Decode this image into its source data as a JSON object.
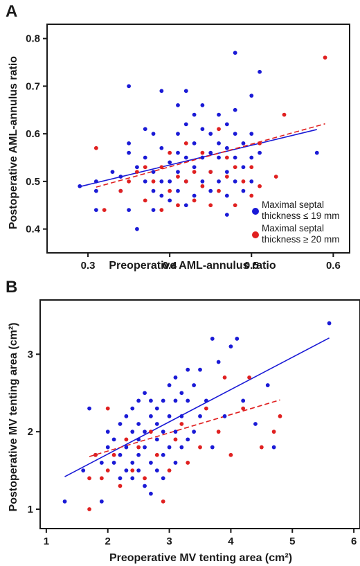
{
  "figure": {
    "background": "#ffffff",
    "axis_color": "#1a1a1a"
  },
  "colors": {
    "blue": "#1a1ad6",
    "red": "#e02020"
  },
  "chart_data": [
    {
      "panel": "A",
      "type": "scatter",
      "xlabel": "Preoperative AML-annulus ratio",
      "ylabel": "Postoperative AML-annulus ratio",
      "xlim": [
        0.25,
        0.62
      ],
      "ylim": [
        0.35,
        0.83
      ],
      "xticks": [
        0.3,
        0.4,
        0.5,
        0.6
      ],
      "xtick_labels": [
        "0.3",
        "0.4",
        "0.5",
        "0.6"
      ],
      "yticks": [
        0.4,
        0.5,
        0.6,
        0.7,
        0.8
      ],
      "ytick_labels": [
        "0.4",
        "0.5",
        "0.6",
        "0.7",
        "0.8"
      ],
      "grid": false,
      "legend": {
        "placement": "bottom-right"
      },
      "series": [
        {
          "name": "Maximal septal thickness ≤ 19 mm",
          "color": "#1a1ad6",
          "points": [
            [
              0.29,
              0.49
            ],
            [
              0.31,
              0.44
            ],
            [
              0.31,
              0.48
            ],
            [
              0.31,
              0.5
            ],
            [
              0.33,
              0.52
            ],
            [
              0.34,
              0.48
            ],
            [
              0.34,
              0.51
            ],
            [
              0.35,
              0.7
            ],
            [
              0.35,
              0.58
            ],
            [
              0.35,
              0.56
            ],
            [
              0.35,
              0.44
            ],
            [
              0.36,
              0.53
            ],
            [
              0.36,
              0.4
            ],
            [
              0.37,
              0.5
            ],
            [
              0.37,
              0.55
            ],
            [
              0.37,
              0.61
            ],
            [
              0.38,
              0.44
            ],
            [
              0.38,
              0.48
            ],
            [
              0.38,
              0.52
            ],
            [
              0.38,
              0.6
            ],
            [
              0.39,
              0.69
            ],
            [
              0.39,
              0.47
            ],
            [
              0.39,
              0.5
            ],
            [
              0.39,
              0.57
            ],
            [
              0.4,
              0.54
            ],
            [
              0.4,
              0.46
            ],
            [
              0.4,
              0.5
            ],
            [
              0.41,
              0.66
            ],
            [
              0.41,
              0.48
            ],
            [
              0.41,
              0.52
            ],
            [
              0.41,
              0.56
            ],
            [
              0.41,
              0.6
            ],
            [
              0.42,
              0.69
            ],
            [
              0.42,
              0.45
            ],
            [
              0.42,
              0.5
            ],
            [
              0.42,
              0.55
            ],
            [
              0.42,
              0.62
            ],
            [
              0.43,
              0.47
            ],
            [
              0.43,
              0.53
            ],
            [
              0.43,
              0.58
            ],
            [
              0.43,
              0.64
            ],
            [
              0.44,
              0.5
            ],
            [
              0.44,
              0.55
            ],
            [
              0.44,
              0.61
            ],
            [
              0.44,
              0.66
            ],
            [
              0.45,
              0.48
            ],
            [
              0.45,
              0.52
            ],
            [
              0.45,
              0.56
            ],
            [
              0.45,
              0.6
            ],
            [
              0.46,
              0.5
            ],
            [
              0.46,
              0.55
            ],
            [
              0.46,
              0.58
            ],
            [
              0.46,
              0.64
            ],
            [
              0.47,
              0.43
            ],
            [
              0.47,
              0.47
            ],
            [
              0.47,
              0.52
            ],
            [
              0.47,
              0.57
            ],
            [
              0.47,
              0.62
            ],
            [
              0.48,
              0.77
            ],
            [
              0.48,
              0.5
            ],
            [
              0.48,
              0.55
            ],
            [
              0.48,
              0.6
            ],
            [
              0.48,
              0.65
            ],
            [
              0.49,
              0.48
            ],
            [
              0.49,
              0.53
            ],
            [
              0.49,
              0.58
            ],
            [
              0.5,
              0.68
            ],
            [
              0.5,
              0.5
            ],
            [
              0.5,
              0.55
            ],
            [
              0.5,
              0.6
            ],
            [
              0.51,
              0.73
            ],
            [
              0.51,
              0.56
            ],
            [
              0.58,
              0.56
            ]
          ]
        },
        {
          "name": "Maximal septal thickness ≥ 20 mm",
          "color": "#e02020",
          "points": [
            [
              0.31,
              0.57
            ],
            [
              0.32,
              0.44
            ],
            [
              0.34,
              0.48
            ],
            [
              0.35,
              0.5
            ],
            [
              0.36,
              0.52
            ],
            [
              0.37,
              0.46
            ],
            [
              0.37,
              0.53
            ],
            [
              0.38,
              0.5
            ],
            [
              0.39,
              0.44
            ],
            [
              0.39,
              0.53
            ],
            [
              0.4,
              0.48
            ],
            [
              0.4,
              0.56
            ],
            [
              0.41,
              0.45
            ],
            [
              0.41,
              0.51
            ],
            [
              0.42,
              0.58
            ],
            [
              0.42,
              0.5
            ],
            [
              0.43,
              0.46
            ],
            [
              0.43,
              0.52
            ],
            [
              0.44,
              0.49
            ],
            [
              0.44,
              0.56
            ],
            [
              0.45,
              0.45
            ],
            [
              0.45,
              0.52
            ],
            [
              0.46,
              0.48
            ],
            [
              0.46,
              0.61
            ],
            [
              0.47,
              0.51
            ],
            [
              0.47,
              0.55
            ],
            [
              0.48,
              0.45
            ],
            [
              0.48,
              0.53
            ],
            [
              0.49,
              0.5
            ],
            [
              0.5,
              0.47
            ],
            [
              0.5,
              0.53
            ],
            [
              0.51,
              0.49
            ],
            [
              0.51,
              0.58
            ],
            [
              0.53,
              0.51
            ],
            [
              0.54,
              0.64
            ],
            [
              0.59,
              0.76
            ]
          ]
        }
      ],
      "fit_lines": [
        {
          "color": "#1a1ad6",
          "style": "solid",
          "x": [
            0.29,
            0.58
          ],
          "y": [
            0.489,
            0.609
          ]
        },
        {
          "color": "#e02020",
          "style": "dashed",
          "x": [
            0.31,
            0.59
          ],
          "y": [
            0.488,
            0.621
          ]
        }
      ]
    },
    {
      "panel": "B",
      "type": "scatter",
      "xlabel": "Preoperative MV tenting area (cm²)",
      "ylabel": "Postoperative MV tenting area (cm²)",
      "xlim": [
        0.9,
        6.1
      ],
      "ylim": [
        0.75,
        3.7
      ],
      "xticks": [
        1,
        2,
        3,
        4,
        5,
        6
      ],
      "xtick_labels": [
        "1",
        "2",
        "3",
        "4",
        "5",
        "6"
      ],
      "yticks": [
        1,
        2,
        3
      ],
      "ytick_labels": [
        "1",
        "2",
        "3"
      ],
      "grid": false,
      "series": [
        {
          "name": "Maximal septal thickness ≤ 19 mm",
          "color": "#1a1ad6",
          "points": [
            [
              1.3,
              1.1
            ],
            [
              1.6,
              1.5
            ],
            [
              1.7,
              2.3
            ],
            [
              1.8,
              1.7
            ],
            [
              1.9,
              1.1
            ],
            [
              1.9,
              1.6
            ],
            [
              2.0,
              1.8
            ],
            [
              2.0,
              2.0
            ],
            [
              2.1,
              1.6
            ],
            [
              2.1,
              1.9
            ],
            [
              2.2,
              1.4
            ],
            [
              2.2,
              1.7
            ],
            [
              2.2,
              2.1
            ],
            [
              2.3,
              1.5
            ],
            [
              2.3,
              1.8
            ],
            [
              2.3,
              2.2
            ],
            [
              2.4,
              1.4
            ],
            [
              2.4,
              1.6
            ],
            [
              2.4,
              2.0
            ],
            [
              2.4,
              2.3
            ],
            [
              2.5,
              1.5
            ],
            [
              2.5,
              1.7
            ],
            [
              2.5,
              1.9
            ],
            [
              2.5,
              2.1
            ],
            [
              2.5,
              2.4
            ],
            [
              2.6,
              1.3
            ],
            [
              2.6,
              1.8
            ],
            [
              2.6,
              2.0
            ],
            [
              2.6,
              2.5
            ],
            [
              2.7,
              1.2
            ],
            [
              2.7,
              1.6
            ],
            [
              2.7,
              2.2
            ],
            [
              2.7,
              2.4
            ],
            [
              2.8,
              1.5
            ],
            [
              2.8,
              1.9
            ],
            [
              2.8,
              2.1
            ],
            [
              2.8,
              2.3
            ],
            [
              2.9,
              1.4
            ],
            [
              2.9,
              1.7
            ],
            [
              2.9,
              2.0
            ],
            [
              2.9,
              2.4
            ],
            [
              3.0,
              1.8
            ],
            [
              3.0,
              2.2
            ],
            [
              3.0,
              2.6
            ],
            [
              3.1,
              1.6
            ],
            [
              3.1,
              2.0
            ],
            [
              3.1,
              2.4
            ],
            [
              3.1,
              2.7
            ],
            [
              3.2,
              1.8
            ],
            [
              3.2,
              2.2
            ],
            [
              3.2,
              2.5
            ],
            [
              3.3,
              1.9
            ],
            [
              3.3,
              2.4
            ],
            [
              3.3,
              2.8
            ],
            [
              3.4,
              2.0
            ],
            [
              3.4,
              2.6
            ],
            [
              3.5,
              2.2
            ],
            [
              3.5,
              2.8
            ],
            [
              3.6,
              2.4
            ],
            [
              3.7,
              1.8
            ],
            [
              3.7,
              3.2
            ],
            [
              3.8,
              2.9
            ],
            [
              3.9,
              2.2
            ],
            [
              4.0,
              3.1
            ],
            [
              4.1,
              3.2
            ],
            [
              4.2,
              2.4
            ],
            [
              4.4,
              2.1
            ],
            [
              4.6,
              2.6
            ],
            [
              4.7,
              1.8
            ],
            [
              5.6,
              3.4
            ]
          ]
        },
        {
          "name": "Maximal septal thickness ≥ 20 mm",
          "color": "#e02020",
          "points": [
            [
              1.7,
              1.0
            ],
            [
              1.7,
              1.4
            ],
            [
              1.8,
              1.7
            ],
            [
              1.9,
              1.4
            ],
            [
              2.0,
              1.5
            ],
            [
              2.0,
              2.3
            ],
            [
              2.1,
              1.7
            ],
            [
              2.2,
              1.3
            ],
            [
              2.3,
              1.9
            ],
            [
              2.4,
              1.5
            ],
            [
              2.5,
              1.8
            ],
            [
              2.6,
              1.4
            ],
            [
              2.7,
              2.0
            ],
            [
              2.8,
              1.7
            ],
            [
              2.9,
              1.1
            ],
            [
              3.0,
              1.5
            ],
            [
              3.1,
              1.9
            ],
            [
              3.2,
              2.1
            ],
            [
              3.3,
              1.6
            ],
            [
              3.5,
              1.8
            ],
            [
              3.6,
              2.3
            ],
            [
              3.8,
              2.0
            ],
            [
              3.9,
              2.7
            ],
            [
              4.0,
              1.7
            ],
            [
              4.2,
              2.3
            ],
            [
              4.3,
              2.7
            ],
            [
              4.5,
              1.8
            ],
            [
              4.7,
              2.0
            ],
            [
              4.8,
              2.2
            ]
          ]
        }
      ],
      "fit_lines": [
        {
          "color": "#1a1ad6",
          "style": "solid",
          "x": [
            1.3,
            5.6
          ],
          "y": [
            1.42,
            3.21
          ]
        },
        {
          "color": "#e02020",
          "style": "dashed",
          "x": [
            1.7,
            4.8
          ],
          "y": [
            1.68,
            2.41
          ]
        }
      ]
    }
  ]
}
